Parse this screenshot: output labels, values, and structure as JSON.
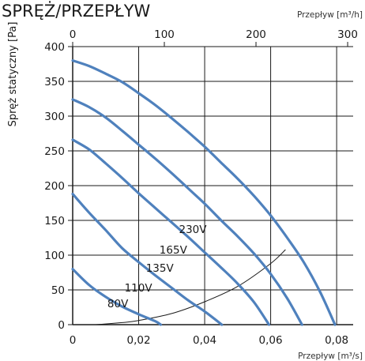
{
  "colors": {
    "curve": "#4f81bd",
    "grid": "#1a1a1a",
    "system_curve": "#1a1a1a",
    "background": "#ffffff"
  },
  "chart_data": {
    "type": "line",
    "title": "SPRĘŻ/PRZEPŁYW",
    "xlabel": "Przepływ [m³/s]",
    "x2label": "Przepływ [m³/h]",
    "ylabel": "Spręż statyczny [Pa]",
    "xlim": [
      0,
      0.085
    ],
    "ylim": [
      0,
      400
    ],
    "x2lim": [
      0,
      306
    ],
    "grid": true,
    "x_ticks": [
      "0",
      "0,02",
      "0,04",
      "0,06",
      "0,08"
    ],
    "x_tick_values": [
      0,
      0.02,
      0.04,
      0.06,
      0.08
    ],
    "x2_ticks": [
      "0",
      "100",
      "200",
      "300"
    ],
    "x2_tick_values": [
      0,
      100,
      200,
      300
    ],
    "y_ticks": [
      "0",
      "50",
      "100",
      "150",
      "200",
      "250",
      "300",
      "350",
      "400"
    ],
    "y_tick_values": [
      0,
      50,
      100,
      150,
      200,
      250,
      300,
      350,
      400
    ],
    "series": [
      {
        "name": "80V",
        "x": [
          0,
          0.005,
          0.01,
          0.015,
          0.02,
          0.025,
          0.0267
        ],
        "y": [
          80,
          57,
          40,
          26,
          15,
          5,
          0
        ]
      },
      {
        "name": "110V",
        "x": [
          0,
          0.005,
          0.01,
          0.015,
          0.02,
          0.025,
          0.03,
          0.035,
          0.04,
          0.0452
        ],
        "y": [
          188,
          161,
          136,
          110,
          90,
          71,
          53,
          35,
          19,
          0
        ]
      },
      {
        "name": "135V",
        "x": [
          0,
          0.005,
          0.01,
          0.015,
          0.02,
          0.025,
          0.03,
          0.035,
          0.04,
          0.045,
          0.05,
          0.055,
          0.0595
        ],
        "y": [
          266,
          252,
          232,
          211,
          189,
          168,
          147,
          126,
          104,
          82,
          59,
          32,
          0
        ]
      },
      {
        "name": "165V",
        "x": [
          0,
          0.005,
          0.01,
          0.015,
          0.02,
          0.025,
          0.03,
          0.035,
          0.04,
          0.045,
          0.05,
          0.055,
          0.06,
          0.065,
          0.0695
        ],
        "y": [
          324,
          313,
          298,
          279,
          259,
          239,
          218,
          196,
          174,
          150,
          127,
          102,
          73,
          38,
          0
        ]
      },
      {
        "name": "230V",
        "x": [
          0,
          0.005,
          0.01,
          0.015,
          0.02,
          0.025,
          0.03,
          0.035,
          0.04,
          0.045,
          0.05,
          0.055,
          0.06,
          0.065,
          0.07,
          0.075,
          0.0795
        ],
        "y": [
          380,
          372,
          361,
          349,
          333,
          316,
          297,
          277,
          256,
          233,
          210,
          185,
          157,
          125,
          90,
          47,
          0
        ]
      }
    ],
    "system_curve": {
      "x": [
        0.007,
        0.015,
        0.02,
        0.03,
        0.04,
        0.05,
        0.06,
        0.0645
      ],
      "y": [
        0,
        3,
        6,
        16,
        33,
        55,
        88,
        108
      ]
    }
  }
}
